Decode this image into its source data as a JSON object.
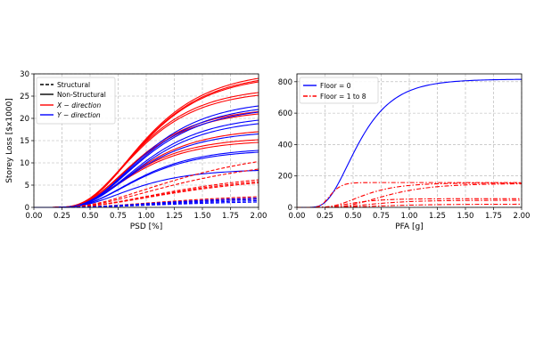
{
  "chart_data": [
    {
      "type": "line",
      "xlabel": "PSD [%]",
      "ylabel": "Storey Loss [$x1000]",
      "xlim": [
        0,
        2.0
      ],
      "ylim": [
        0,
        30
      ],
      "xticks": [
        "0.00",
        "0.25",
        "0.50",
        "0.75",
        "1.00",
        "1.25",
        "1.50",
        "1.75",
        "2.00"
      ],
      "yticks": [
        "0",
        "5",
        "10",
        "15",
        "20",
        "25",
        "30"
      ],
      "grid": true,
      "legend_position": "top-left",
      "legend": [
        {
          "label": "Structural",
          "color": "#000000",
          "style": "dashed"
        },
        {
          "label": "Non-Structural",
          "color": "#000000",
          "style": "solid"
        },
        {
          "label": "X − direction",
          "color": "#ff0000",
          "style": "solid",
          "italic": true
        },
        {
          "label": "Y − direction",
          "color": "#0000ff",
          "style": "solid",
          "italic": true
        }
      ],
      "curve_shape": {
        "model": "lognormal-cdf",
        "x": [
          0.0,
          0.25,
          0.5,
          0.75,
          1.0,
          1.25,
          1.5,
          1.75,
          2.0
        ]
      },
      "series": [
        {
          "direction": "X",
          "component": "non-structural",
          "color": "#ff0000",
          "dash": false,
          "median": 1.0,
          "beta": 0.45,
          "y_at_2": 29
        },
        {
          "direction": "X",
          "component": "non-structural",
          "color": "#ff0000",
          "dash": false,
          "median": 1.0,
          "beta": 0.45,
          "y_at_2": 28.5
        },
        {
          "direction": "X",
          "component": "non-structural",
          "color": "#ff0000",
          "dash": false,
          "median": 1.0,
          "beta": 0.45,
          "y_at_2": 28.2
        },
        {
          "direction": "X",
          "component": "non-structural",
          "color": "#ff0000",
          "dash": false,
          "median": 0.95,
          "beta": 0.45,
          "y_at_2": 25.8
        },
        {
          "direction": "X",
          "component": "non-structural",
          "color": "#ff0000",
          "dash": false,
          "median": 0.95,
          "beta": 0.45,
          "y_at_2": 25.2
        },
        {
          "direction": "X",
          "component": "non-structural",
          "color": "#ff0000",
          "dash": false,
          "median": 0.95,
          "beta": 0.45,
          "y_at_2": 21.5
        },
        {
          "direction": "X",
          "component": "non-structural",
          "color": "#ff0000",
          "dash": false,
          "median": 0.95,
          "beta": 0.45,
          "y_at_2": 21.0
        },
        {
          "direction": "X",
          "component": "non-structural",
          "color": "#ff0000",
          "dash": false,
          "median": 0.95,
          "beta": 0.45,
          "y_at_2": 17.0
        },
        {
          "direction": "X",
          "component": "non-structural",
          "color": "#ff0000",
          "dash": false,
          "median": 0.9,
          "beta": 0.45,
          "y_at_2": 15.2
        },
        {
          "direction": "X",
          "component": "non-structural",
          "color": "#ff0000",
          "dash": false,
          "median": 0.9,
          "beta": 0.45,
          "y_at_2": 14.6
        },
        {
          "direction": "Y",
          "component": "non-structural",
          "color": "#0000ff",
          "dash": false,
          "median": 1.0,
          "beta": 0.45,
          "y_at_2": 22.8
        },
        {
          "direction": "Y",
          "component": "non-structural",
          "color": "#0000ff",
          "dash": false,
          "median": 1.0,
          "beta": 0.45,
          "y_at_2": 22.0
        },
        {
          "direction": "Y",
          "component": "non-structural",
          "color": "#0000ff",
          "dash": false,
          "median": 1.0,
          "beta": 0.45,
          "y_at_2": 21.4
        },
        {
          "direction": "Y",
          "component": "non-structural",
          "color": "#0000ff",
          "dash": false,
          "median": 1.0,
          "beta": 0.45,
          "y_at_2": 19.6
        },
        {
          "direction": "Y",
          "component": "non-structural",
          "color": "#0000ff",
          "dash": false,
          "median": 1.0,
          "beta": 0.45,
          "y_at_2": 18.8
        },
        {
          "direction": "Y",
          "component": "non-structural",
          "color": "#0000ff",
          "dash": false,
          "median": 0.95,
          "beta": 0.45,
          "y_at_2": 16.5
        },
        {
          "direction": "Y",
          "component": "non-structural",
          "color": "#0000ff",
          "dash": false,
          "median": 0.95,
          "beta": 0.45,
          "y_at_2": 12.8
        },
        {
          "direction": "Y",
          "component": "non-structural",
          "color": "#0000ff",
          "dash": false,
          "median": 0.95,
          "beta": 0.45,
          "y_at_2": 12.4
        },
        {
          "direction": "Y",
          "component": "non-structural",
          "color": "#0000ff",
          "dash": false,
          "median": 0.9,
          "beta": 0.45,
          "y_at_2": 8.3
        },
        {
          "direction": "X",
          "component": "structural",
          "color": "#ff0000",
          "dash": true,
          "median": 1.4,
          "beta": 0.6,
          "y_at_2": 10.3
        },
        {
          "direction": "X",
          "component": "structural",
          "color": "#ff0000",
          "dash": true,
          "median": 1.4,
          "beta": 0.6,
          "y_at_2": 8.6
        },
        {
          "direction": "X",
          "component": "structural",
          "color": "#ff0000",
          "dash": true,
          "median": 1.4,
          "beta": 0.6,
          "y_at_2": 6.2
        },
        {
          "direction": "X",
          "component": "structural",
          "color": "#ff0000",
          "dash": true,
          "median": 1.4,
          "beta": 0.6,
          "y_at_2": 5.8
        },
        {
          "direction": "X",
          "component": "structural",
          "color": "#ff0000",
          "dash": true,
          "median": 1.4,
          "beta": 0.6,
          "y_at_2": 5.5
        },
        {
          "direction": "X",
          "component": "structural",
          "color": "#ff0000",
          "dash": true,
          "median": 1.4,
          "beta": 0.6,
          "y_at_2": 2.4
        },
        {
          "direction": "X",
          "component": "structural",
          "color": "#ff0000",
          "dash": true,
          "median": 1.4,
          "beta": 0.6,
          "y_at_2": 2.0
        },
        {
          "direction": "Y",
          "component": "structural",
          "color": "#0000ff",
          "dash": true,
          "median": 1.4,
          "beta": 0.6,
          "y_at_2": 2.1
        },
        {
          "direction": "Y",
          "component": "structural",
          "color": "#0000ff",
          "dash": true,
          "median": 1.4,
          "beta": 0.6,
          "y_at_2": 1.8
        },
        {
          "direction": "Y",
          "component": "structural",
          "color": "#0000ff",
          "dash": true,
          "median": 1.4,
          "beta": 0.6,
          "y_at_2": 1.5
        },
        {
          "direction": "Y",
          "component": "structural",
          "color": "#0000ff",
          "dash": true,
          "median": 1.4,
          "beta": 0.6,
          "y_at_2": 1.2
        }
      ]
    },
    {
      "type": "line",
      "xlabel": "PFA [g]",
      "ylabel": "",
      "xlim": [
        0,
        2.0
      ],
      "ylim": [
        0,
        850
      ],
      "xticks": [
        "0.00",
        "0.25",
        "0.50",
        "0.75",
        "1.00",
        "1.25",
        "1.50",
        "1.75",
        "2.00"
      ],
      "yticks": [
        "0",
        "200",
        "400",
        "600",
        "800"
      ],
      "grid": true,
      "legend_position": "top-left",
      "legend": [
        {
          "label": "Floor = 0",
          "color": "#0000ff",
          "style": "solid"
        },
        {
          "label": "Floor = 1 to 8",
          "color": "#ff0000",
          "style": "dashdot"
        }
      ],
      "curve_shape": {
        "model": "lognormal-cdf",
        "x": [
          0.0,
          0.25,
          0.5,
          0.75,
          1.0,
          1.25,
          1.5,
          1.75,
          2.0
        ]
      },
      "series": [
        {
          "floor": "0",
          "color": "#0000ff",
          "dash": false,
          "median": 0.55,
          "beta": 0.45,
          "y_at_2": 815
        },
        {
          "floor": "1 to 8",
          "color": "#ff0000",
          "dash": true,
          "median": 0.3,
          "beta": 0.25,
          "y_at_2": 158
        },
        {
          "floor": "1 to 8",
          "color": "#ff0000",
          "dash": true,
          "median": 0.6,
          "beta": 0.4,
          "y_at_2": 155
        },
        {
          "floor": "1 to 8",
          "color": "#ff0000",
          "dash": true,
          "median": 0.8,
          "beta": 0.4,
          "y_at_2": 150
        },
        {
          "floor": "1 to 8",
          "color": "#ff0000",
          "dash": true,
          "median": 0.5,
          "beta": 0.4,
          "y_at_2": 55
        },
        {
          "floor": "1 to 8",
          "color": "#ff0000",
          "dash": true,
          "median": 0.7,
          "beta": 0.4,
          "y_at_2": 45
        },
        {
          "floor": "1 to 8",
          "color": "#ff0000",
          "dash": true,
          "median": 0.8,
          "beta": 0.45,
          "y_at_2": 20
        }
      ]
    }
  ]
}
